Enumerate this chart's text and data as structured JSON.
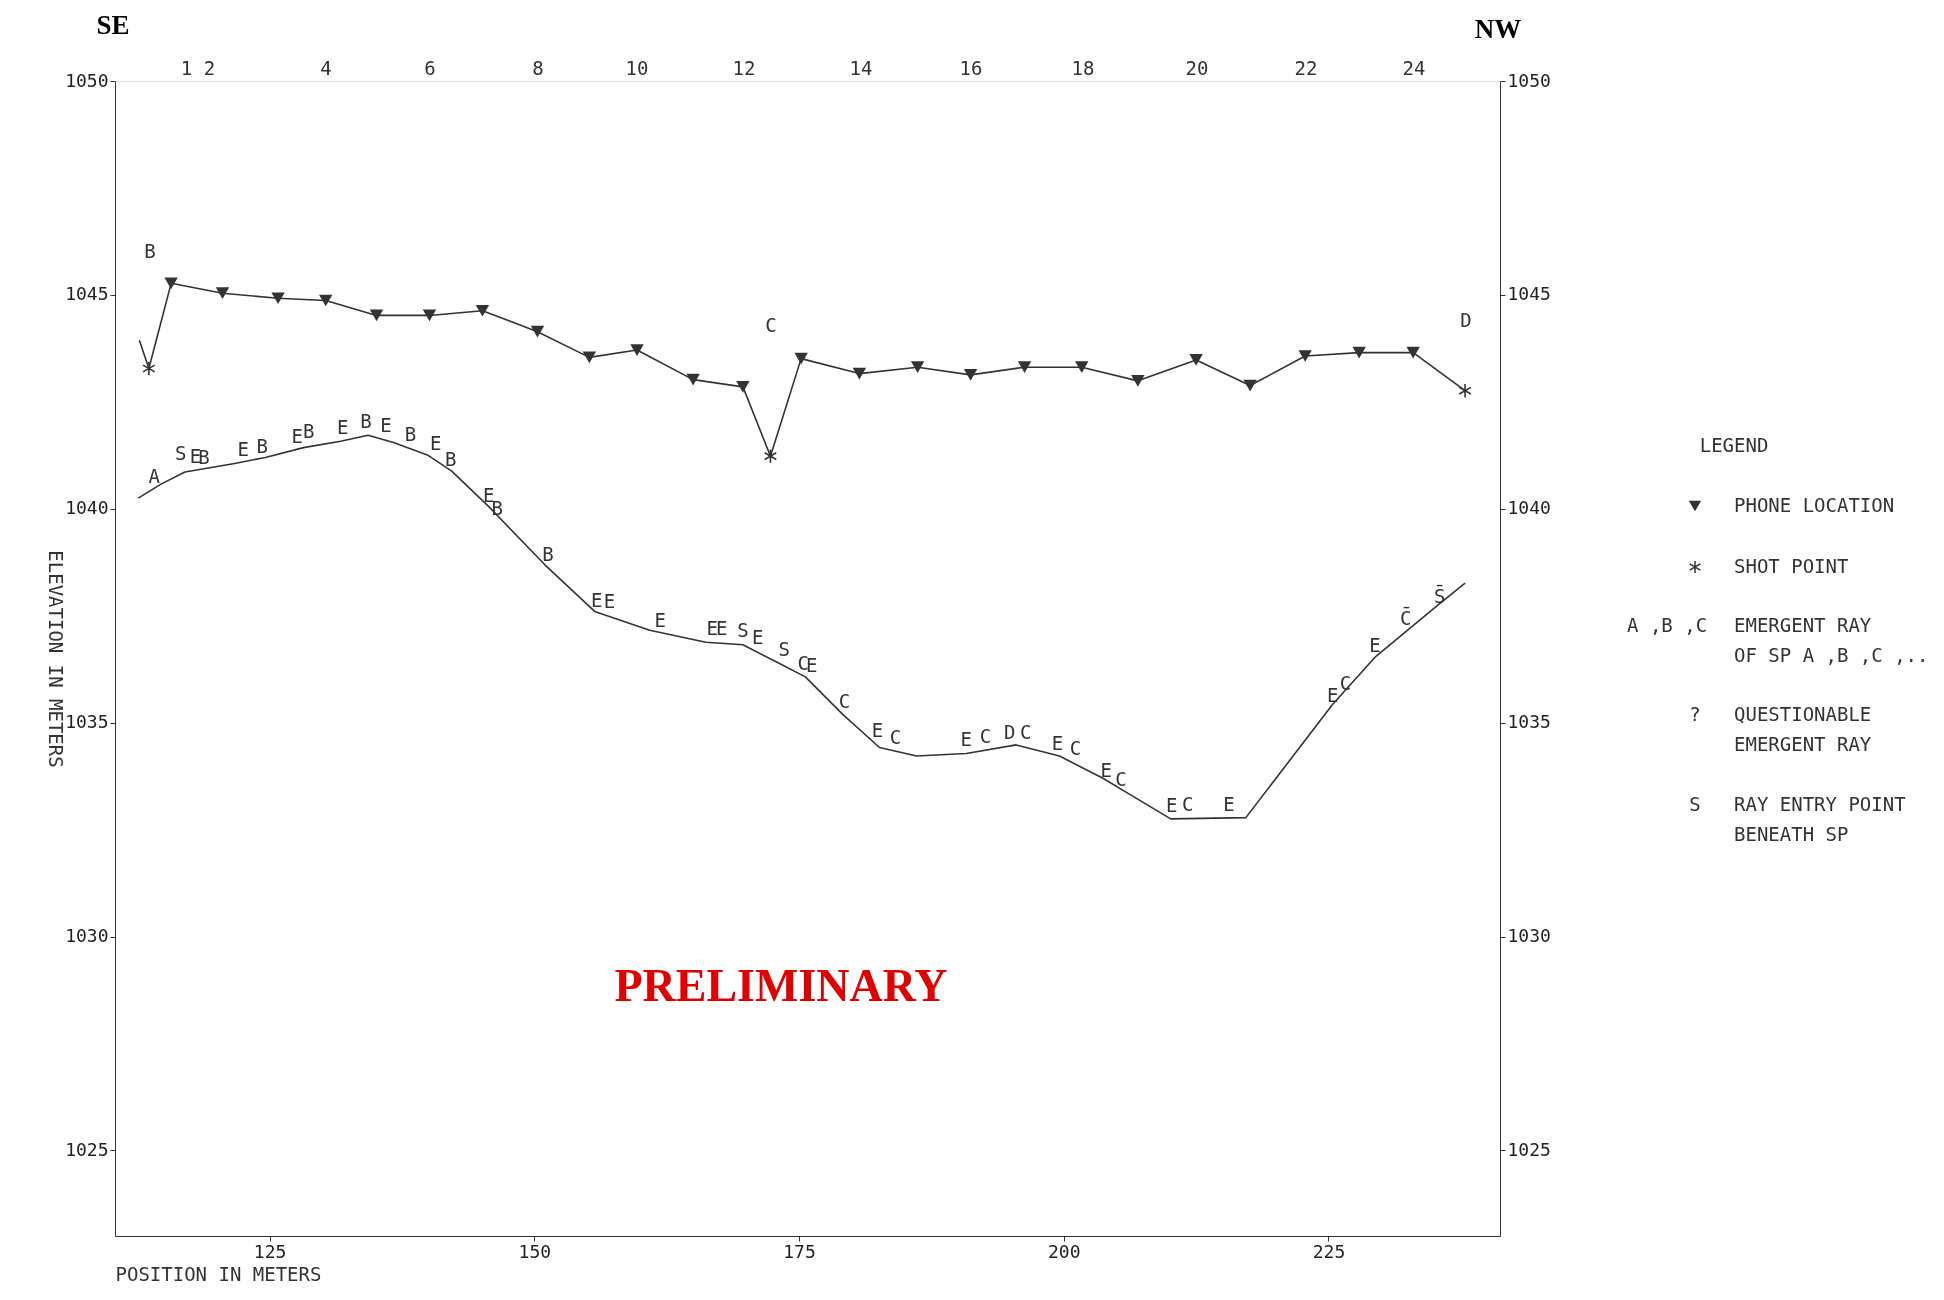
{
  "chart_data": {
    "type": "line",
    "xlabel": "POSITION IN METERS",
    "ylabel": "ELEVATION IN METERS",
    "legend_title": "LEGEND",
    "legend": "right",
    "grid": false,
    "xlim": [
      110.4,
      241.2
    ],
    "xticks": [
      125,
      150,
      175,
      200,
      225
    ],
    "ylim": [
      1023,
      1050
    ],
    "yticks": [
      1025,
      1030,
      1035,
      1040,
      1045,
      1050
    ],
    "y2lim": [
      1023,
      1050
    ],
    "y2ticks": [
      1025,
      1030,
      1035,
      1040,
      1045,
      1050
    ],
    "series": [
      {
        "color": "#333333",
        "x": [
          112.7,
          113.6,
          115.7,
          120.55,
          125.8,
          130.3,
          135.1,
          140.1,
          145.1,
          150.3,
          155.2,
          159.7,
          165.0,
          169.7,
          172.3,
          175.2,
          180.7,
          186.2,
          191.2,
          196.3,
          201.7,
          207.0,
          212.5,
          217.6,
          222.8,
          227.9,
          233.0,
          237.9
        ],
        "values": [
          1043.94,
          1043.28,
          1045.27,
          1045.04,
          1044.92,
          1044.87,
          1044.52,
          1044.52,
          1044.63,
          1044.14,
          1043.54,
          1043.71,
          1043.02,
          1042.85,
          1041.23,
          1043.51,
          1043.16,
          1043.31,
          1043.13,
          1043.31,
          1043.31,
          1042.99,
          1043.48,
          1042.88,
          1043.57,
          1043.65,
          1043.65,
          1042.76
        ]
      },
      {
        "type": "scatter",
        "name": "PHONE LOCATION",
        "marker": "triangle",
        "color": "#333333",
        "x": [
          115.7,
          120.55,
          125.8,
          130.3,
          135.1,
          140.1,
          145.1,
          150.3,
          155.2,
          159.7,
          165.0,
          169.7,
          175.2,
          180.7,
          186.2,
          191.2,
          196.3,
          201.7,
          207.0,
          212.5,
          217.6,
          222.8,
          227.9,
          233.0
        ],
        "values": [
          1045.27,
          1045.04,
          1044.92,
          1044.87,
          1044.52,
          1044.52,
          1044.63,
          1044.14,
          1043.54,
          1043.71,
          1043.02,
          1042.85,
          1043.51,
          1043.16,
          1043.31,
          1043.13,
          1043.31,
          1043.31,
          1042.99,
          1043.48,
          1042.88,
          1043.57,
          1043.65,
          1043.65
        ]
      },
      {
        "type": "scatter",
        "name": "SHOT POINT",
        "marker": "cross",
        "color": "#333333",
        "x": [
          113.6,
          172.3,
          237.9
        ],
        "values": [
          1043.28,
          1041.23,
          1042.76
        ]
      },
      {
        "color": "#333333",
        "x": [
          112.6,
          114.7,
          117.0,
          121.7,
          124.6,
          128.2,
          131.7,
          134.3,
          136.7,
          139.9,
          142.2,
          145.7,
          151.0,
          155.7,
          160.9,
          166.2,
          169.7,
          172.7,
          175.6,
          179.1,
          182.6,
          186.1,
          190.8,
          195.5,
          199.6,
          203.7,
          206.0,
          210.1,
          217.2,
          225.4,
          229.4,
          235.3,
          237.9
        ],
        "values": [
          1040.25,
          1040.57,
          1040.86,
          1041.06,
          1041.2,
          1041.43,
          1041.58,
          1041.72,
          1041.55,
          1041.26,
          1040.88,
          1040.05,
          1038.69,
          1037.6,
          1037.16,
          1036.88,
          1036.82,
          1036.44,
          1036.07,
          1035.2,
          1034.42,
          1034.22,
          1034.28,
          1034.48,
          1034.22,
          1033.7,
          1033.36,
          1032.75,
          1032.78,
          1035.43,
          1036.53,
          1037.74,
          1038.26
        ]
      }
    ],
    "annotations": [
      "SE",
      "NW",
      "PRELIMINARY",
      "A ,B ,C",
      "EMERGENT RAY\nOF SP A ,B ,C ,..",
      "?",
      "QUESTIONABLE\nEMERGENT RAY",
      "S",
      "RAY ENTRY POINT\nBENEATH SP",
      "B",
      "C",
      "D",
      "1   2",
      "4",
      "6",
      "8",
      "10",
      "12",
      "14",
      "16",
      "18",
      "20",
      "22",
      "24",
      {
        "text": "A",
        "x": 114.1,
        "y": 1040.45
      },
      {
        "text": "S",
        "x": 116.6,
        "y": 1040.97
      },
      {
        "text": "E",
        "x": 118.0,
        "y": 1040.9
      },
      {
        "text": "B",
        "x": 118.8,
        "y": 1040.89
      },
      {
        "text": "E",
        "x": 122.5,
        "y": 1041.06
      },
      {
        "text": "B",
        "x": 124.3,
        "y": 1041.15
      },
      {
        "text": "E",
        "x": 127.6,
        "y": 1041.38
      },
      {
        "text": "B",
        "x": 128.7,
        "y": 1041.49
      },
      {
        "text": "E",
        "x": 131.9,
        "y": 1041.58
      },
      {
        "text": "B",
        "x": 134.1,
        "y": 1041.72
      },
      {
        "text": "E",
        "x": 136.0,
        "y": 1041.64
      },
      {
        "text": "B",
        "x": 138.3,
        "y": 1041.43
      },
      {
        "text": "E",
        "x": 140.7,
        "y": 1041.2
      },
      {
        "text": "B",
        "x": 142.1,
        "y": 1040.83
      },
      {
        "text": "E",
        "x": 145.7,
        "y": 1039.99
      },
      {
        "text": "B",
        "x": 146.5,
        "y": 1039.7
      },
      {
        "text": "B",
        "x": 151.3,
        "y": 1038.61
      },
      {
        "text": "E",
        "x": 155.9,
        "y": 1037.54
      },
      {
        "text": "E",
        "x": 157.1,
        "y": 1037.51
      },
      {
        "text": "E",
        "x": 161.9,
        "y": 1037.08
      },
      {
        "text": "E",
        "x": 166.8,
        "y": 1036.88
      },
      {
        "text": "E",
        "x": 167.7,
        "y": 1036.88
      },
      {
        "text": "S",
        "x": 169.7,
        "y": 1036.85
      },
      {
        "text": "E",
        "x": 171.1,
        "y": 1036.67
      },
      {
        "text": "S",
        "x": 173.6,
        "y": 1036.39
      },
      {
        "text": "C",
        "x": 175.4,
        "y": 1036.07
      },
      {
        "text": "E",
        "x": 176.2,
        "y": 1036.01
      },
      {
        "text": "C",
        "x": 179.3,
        "y": 1035.17
      },
      {
        "text": "E",
        "x": 182.4,
        "y": 1034.51
      },
      {
        "text": "C",
        "x": 184.1,
        "y": 1034.33
      },
      {
        "text": "E",
        "x": 190.8,
        "y": 1034.28
      },
      {
        "text": "C",
        "x": 192.6,
        "y": 1034.37
      },
      {
        "text": "D",
        "x": 194.9,
        "y": 1034.45
      },
      {
        "text": "C",
        "x": 196.4,
        "y": 1034.45
      },
      {
        "text": "E",
        "x": 199.4,
        "y": 1034.19
      },
      {
        "text": "C",
        "x": 201.1,
        "y": 1034.08
      },
      {
        "text": "E",
        "x": 204.0,
        "y": 1033.56
      },
      {
        "text": "C",
        "x": 205.4,
        "y": 1033.36
      },
      {
        "text": "E",
        "x": 210.2,
        "y": 1032.75
      },
      {
        "text": "C",
        "x": 211.7,
        "y": 1032.76
      },
      {
        "text": "E",
        "x": 215.6,
        "y": 1032.77
      },
      {
        "text": "E",
        "x": 225.4,
        "y": 1035.32
      },
      {
        "text": "C",
        "x": 226.6,
        "y": 1035.61
      },
      {
        "text": "E",
        "x": 229.4,
        "y": 1036.5
      },
      {
        "text": "C̄",
        "x": 232.3,
        "y": 1037.12
      },
      {
        "text": "S̄",
        "x": 235.5,
        "y": 1037.63
      }
    ]
  }
}
